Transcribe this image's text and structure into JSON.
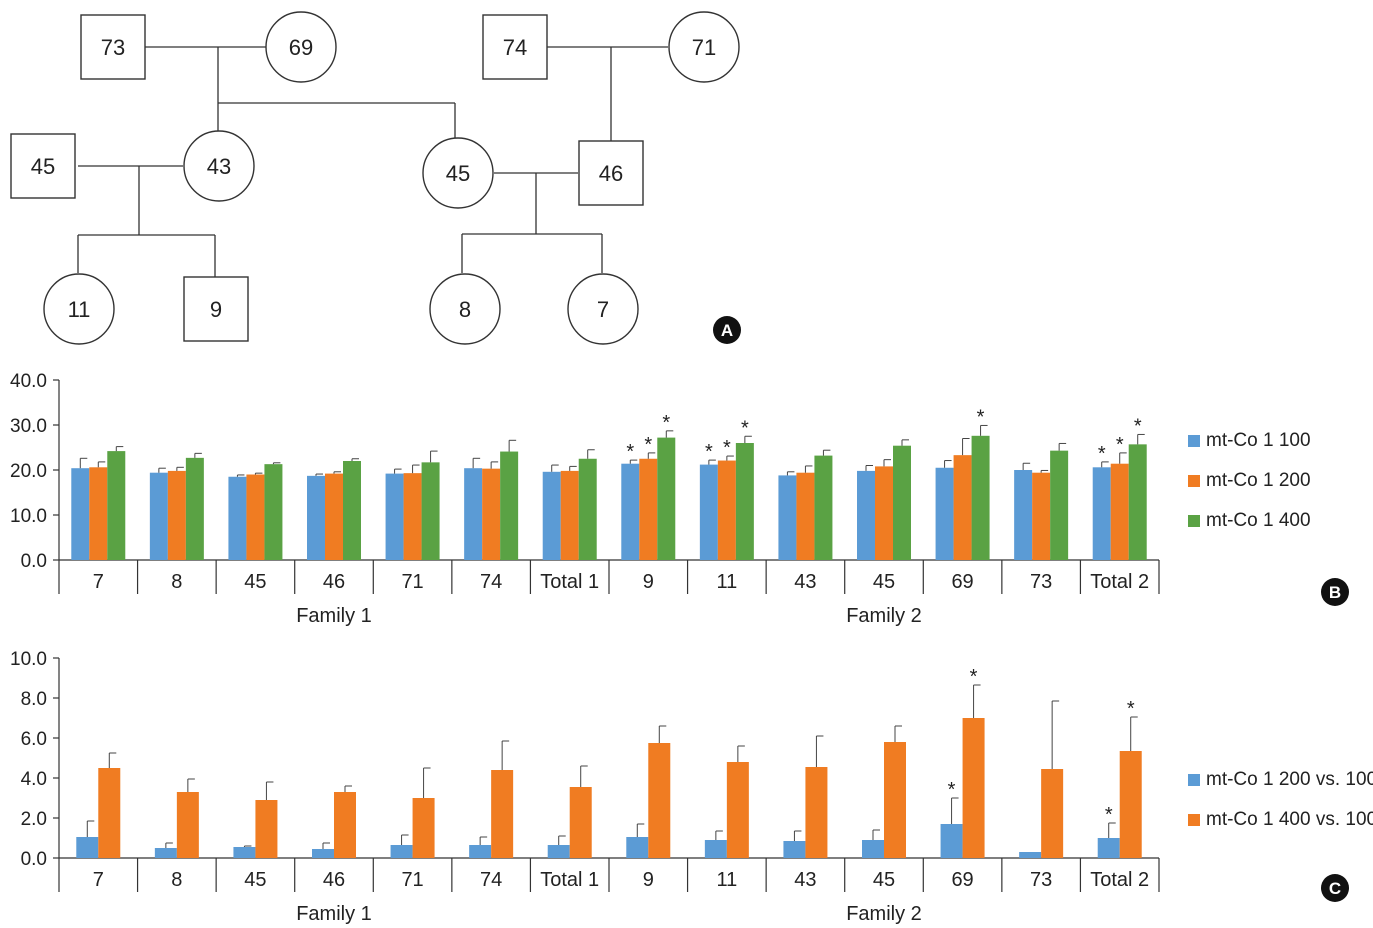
{
  "pedigree": {
    "panel_label": "A",
    "members": [
      {
        "id": "m73",
        "label": "73",
        "sex": "male"
      },
      {
        "id": "f69",
        "label": "69",
        "sex": "female"
      },
      {
        "id": "m74",
        "label": "74",
        "sex": "male"
      },
      {
        "id": "f71",
        "label": "71",
        "sex": "female"
      },
      {
        "id": "m45",
        "label": "45",
        "sex": "male"
      },
      {
        "id": "f43",
        "label": "43",
        "sex": "female"
      },
      {
        "id": "f45",
        "label": "45",
        "sex": "female"
      },
      {
        "id": "m46",
        "label": "46",
        "sex": "male"
      },
      {
        "id": "f11",
        "label": "11",
        "sex": "female"
      },
      {
        "id": "m9",
        "label": "9",
        "sex": "male"
      },
      {
        "id": "f8",
        "label": "8",
        "sex": "female"
      },
      {
        "id": "f7",
        "label": "7",
        "sex": "female"
      }
    ]
  },
  "colors": {
    "blue": "#5b9bd5",
    "orange": "#f07c22",
    "green": "#5aa244",
    "axis": "#333333",
    "badge": "#111111"
  },
  "chart_data": [
    {
      "type": "bar",
      "panel_label": "B",
      "categories": [
        "7",
        "8",
        "45",
        "46",
        "71",
        "74",
        "Total 1",
        "9",
        "11",
        "43",
        "45",
        "69",
        "73",
        "Total 2"
      ],
      "groups": [
        {
          "label": "Family 1",
          "from": 0,
          "to": 6
        },
        {
          "label": "Family 2",
          "from": 7,
          "to": 13
        }
      ],
      "ylim": [
        0,
        40
      ],
      "yticks": [
        "0.0",
        "10.0",
        "20.0",
        "30.0",
        "40.0"
      ],
      "ytick_values": [
        0,
        10,
        20,
        30,
        40
      ],
      "legend_position": "right",
      "series": [
        {
          "name": "mt-Co 1 100",
          "color": "#5b9bd5",
          "values": [
            20.4,
            19.4,
            18.5,
            18.7,
            19.2,
            20.4,
            19.6,
            21.4,
            21.2,
            18.8,
            19.8,
            20.5,
            20.0,
            20.6
          ],
          "errors": [
            2.2,
            1.0,
            0.4,
            0.4,
            1.0,
            2.2,
            1.5,
            0.8,
            1.0,
            0.8,
            1.2,
            1.6,
            1.5,
            1.2
          ],
          "stars": [
            false,
            false,
            false,
            false,
            false,
            false,
            false,
            true,
            true,
            false,
            false,
            false,
            false,
            true
          ]
        },
        {
          "name": "mt-Co 1 200",
          "color": "#f07c22",
          "values": [
            20.6,
            19.8,
            19.0,
            19.2,
            19.3,
            20.3,
            19.8,
            22.5,
            22.1,
            19.4,
            20.8,
            23.3,
            19.4,
            21.4
          ],
          "errors": [
            1.2,
            0.8,
            0.3,
            0.4,
            1.8,
            1.5,
            1.0,
            1.3,
            1.0,
            1.5,
            1.5,
            3.7,
            0.5,
            2.4
          ],
          "stars": [
            false,
            false,
            false,
            false,
            false,
            false,
            false,
            true,
            true,
            false,
            false,
            false,
            false,
            true
          ]
        },
        {
          "name": "mt-Co 1 400",
          "color": "#5aa244",
          "values": [
            24.2,
            22.7,
            21.3,
            22.0,
            21.7,
            24.1,
            22.5,
            27.2,
            26.0,
            23.2,
            25.4,
            27.6,
            24.3,
            25.7
          ],
          "errors": [
            1.0,
            1.0,
            0.3,
            0.5,
            2.5,
            2.5,
            2.0,
            1.5,
            1.5,
            1.2,
            1.3,
            2.3,
            1.6,
            2.2
          ],
          "stars": [
            false,
            false,
            false,
            false,
            false,
            false,
            false,
            true,
            true,
            false,
            false,
            true,
            false,
            true
          ]
        }
      ]
    },
    {
      "type": "bar",
      "panel_label": "C",
      "categories": [
        "7",
        "8",
        "45",
        "46",
        "71",
        "74",
        "Total 1",
        "9",
        "11",
        "43",
        "45",
        "69",
        "73",
        "Total 2"
      ],
      "groups": [
        {
          "label": "Family 1",
          "from": 0,
          "to": 6
        },
        {
          "label": "Family 2",
          "from": 7,
          "to": 13
        }
      ],
      "ylim": [
        0,
        10
      ],
      "yticks": [
        "0.0",
        "2.0",
        "4.0",
        "6.0",
        "8.0",
        "10.0"
      ],
      "ytick_values": [
        0,
        2,
        4,
        6,
        8,
        10
      ],
      "legend_position": "right",
      "series": [
        {
          "name": "mt-Co 1 200 vs. 100",
          "color": "#5b9bd5",
          "values": [
            1.05,
            0.5,
            0.55,
            0.45,
            0.65,
            0.65,
            0.65,
            1.05,
            0.9,
            0.85,
            0.9,
            1.7,
            0.3,
            1.0
          ],
          "errors": [
            0.8,
            0.25,
            0.05,
            0.3,
            0.5,
            0.4,
            0.45,
            0.65,
            0.45,
            0.5,
            0.5,
            1.3,
            0.0,
            0.75
          ],
          "stars": [
            false,
            false,
            false,
            false,
            false,
            false,
            false,
            false,
            false,
            false,
            false,
            true,
            false,
            true
          ]
        },
        {
          "name": "mt-Co 1 400 vs. 100",
          "color": "#f07c22",
          "values": [
            4.5,
            3.3,
            2.9,
            3.3,
            3.0,
            4.4,
            3.55,
            5.75,
            4.8,
            4.55,
            5.8,
            7.0,
            4.45,
            5.35
          ],
          "errors": [
            0.75,
            0.65,
            0.9,
            0.3,
            1.5,
            1.45,
            1.05,
            0.85,
            0.8,
            1.55,
            0.8,
            1.65,
            3.4,
            1.7
          ],
          "stars": [
            false,
            false,
            false,
            false,
            false,
            false,
            false,
            false,
            false,
            false,
            false,
            true,
            false,
            true
          ]
        }
      ]
    }
  ]
}
